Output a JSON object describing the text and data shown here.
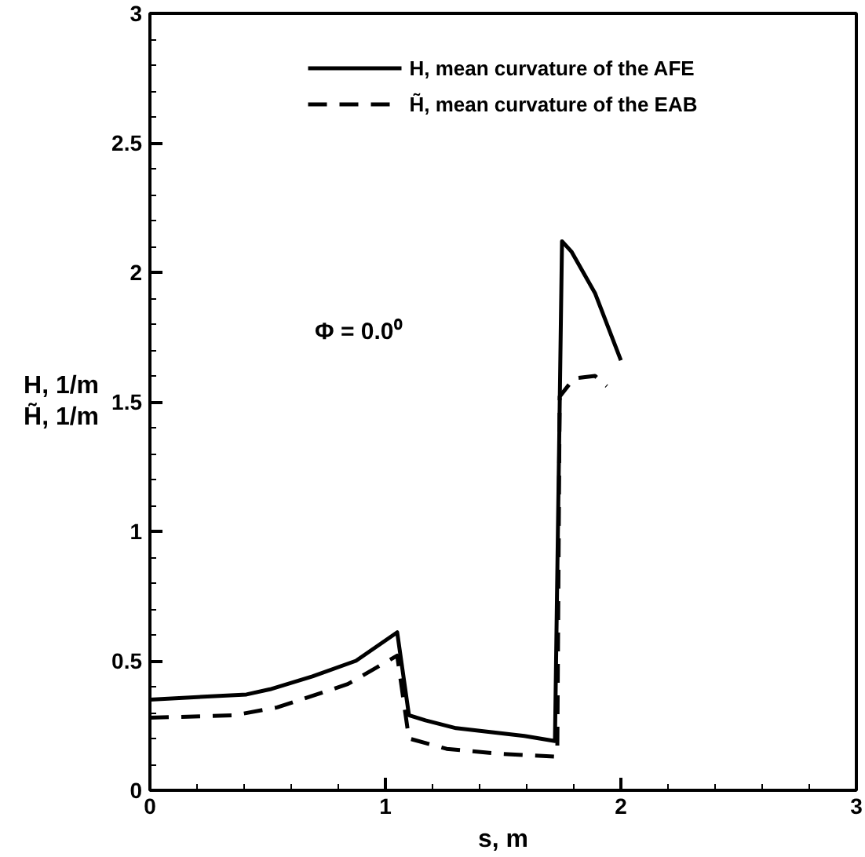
{
  "chart_data": {
    "type": "line",
    "xlabel": "s, m",
    "ylabel": "H, 1/m\nH̃, 1/m",
    "xlim": [
      0,
      3
    ],
    "ylim": [
      0,
      3
    ],
    "xticks": [
      0,
      1,
      2,
      3
    ],
    "yticks": [
      0,
      0.5,
      1,
      1.5,
      2,
      2.5,
      3
    ],
    "grid": false,
    "legend": "top",
    "marker": "none",
    "annotations": [
      "Φ = 0.0⁰"
    ],
    "series": [
      {
        "name": "H, mean curvature of the AFE",
        "color": "#000000",
        "line_style": "solid",
        "x": [
          0,
          0.41,
          0.51,
          0.69,
          0.875,
          1.05,
          1.1,
          1.17,
          1.3,
          1.59,
          1.72,
          1.75,
          1.79,
          1.89,
          2.0
        ],
        "values": [
          0.35,
          0.37,
          0.39,
          0.44,
          0.5,
          0.61,
          0.29,
          0.27,
          0.24,
          0.21,
          0.19,
          2.12,
          2.08,
          1.92,
          1.66
        ]
      },
      {
        "name": "H̃, mean curvature of the EAB",
        "color": "#000000",
        "line_style": "dashed",
        "x": [
          0,
          0.36,
          0.54,
          0.84,
          1.05,
          1.1,
          1.26,
          1.5,
          1.72,
          1.73,
          1.74,
          1.8,
          1.89,
          1.94
        ],
        "values": [
          0.28,
          0.29,
          0.32,
          0.41,
          0.52,
          0.2,
          0.16,
          0.14,
          0.13,
          0.15,
          1.52,
          1.59,
          1.6,
          1.56
        ]
      }
    ]
  }
}
